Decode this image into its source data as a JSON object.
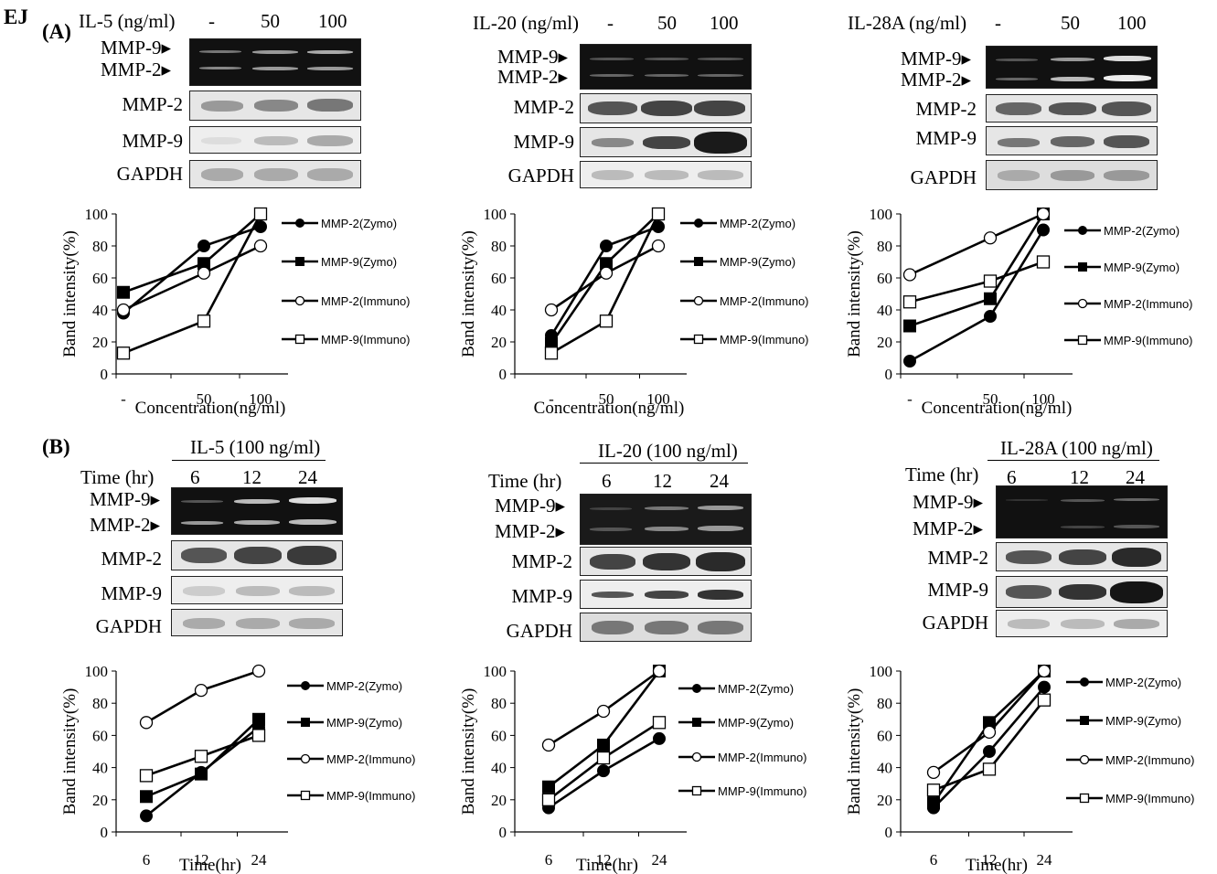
{
  "figure_label": "EJ",
  "panel_a": {
    "label": "(A)",
    "conditions": [
      "-",
      "50",
      "100"
    ],
    "groups": [
      {
        "header": "IL-5 (ng/ml)"
      },
      {
        "header": "IL-20 (ng/ml)"
      },
      {
        "header": "IL-28A (ng/ml)"
      }
    ]
  },
  "panel_b": {
    "label": "(B)",
    "time_label": "Time (hr)",
    "conditions": [
      "6",
      "12",
      "24"
    ],
    "groups": [
      {
        "header": "IL-5 (100 ng/ml)"
      },
      {
        "header": "IL-20 (100 ng/ml)"
      },
      {
        "header": "IL-28A (100 ng/ml)"
      }
    ]
  },
  "blot_labels": {
    "mmp9_arrow": "MMP-9",
    "mmp2_arrow": "MMP-2",
    "mmp2": "MMP-2",
    "mmp9": "MMP-9",
    "gapdh": "GAPDH"
  },
  "legend": [
    "MMP-2(Zymo)",
    "MMP-9(Zymo)",
    "MMP-2(Immuno)",
    "MMP-9(Immuno)"
  ],
  "colors": {
    "ink": "#000000",
    "gel": "#111111",
    "membrane": "#e6e6e6"
  },
  "chart_data": [
    {
      "type": "line",
      "id": "A1",
      "categories": [
        "-",
        "50",
        "100"
      ],
      "ylabel": "Band intensity(%)",
      "xlabel": "Concentration(ng/ml)",
      "ylim": [
        0,
        100
      ],
      "yticks": [
        0,
        20,
        40,
        60,
        80,
        100
      ],
      "series": [
        {
          "name": "MMP-2(Zymo)",
          "values": [
            38,
            80,
            92
          ]
        },
        {
          "name": "MMP-9(Zymo)",
          "values": [
            51,
            69,
            100
          ]
        },
        {
          "name": "MMP-2(Immuno)",
          "values": [
            40,
            63,
            80
          ]
        },
        {
          "name": "MMP-9(Immuno)",
          "values": [
            13,
            33,
            100
          ]
        }
      ]
    },
    {
      "type": "line",
      "id": "A2",
      "categories": [
        "-",
        "50",
        "100"
      ],
      "ylabel": "Band intensity(%)",
      "xlabel": "Concentration(ng/ml)",
      "ylim": [
        0,
        100
      ],
      "yticks": [
        0,
        20,
        40,
        60,
        80,
        100
      ],
      "series": [
        {
          "name": "MMP-2(Zymo)",
          "values": [
            24,
            80,
            92
          ]
        },
        {
          "name": "MMP-9(Zymo)",
          "values": [
            19,
            69,
            100
          ]
        },
        {
          "name": "MMP-2(Immuno)",
          "values": [
            40,
            63,
            80
          ]
        },
        {
          "name": "MMP-9(Immuno)",
          "values": [
            13,
            33,
            100
          ]
        }
      ]
    },
    {
      "type": "line",
      "id": "A3",
      "categories": [
        "-",
        "50",
        "100"
      ],
      "ylabel": "Band intensity(%)",
      "xlabel": "Concentration(ng/ml)",
      "ylim": [
        0,
        100
      ],
      "yticks": [
        0,
        20,
        40,
        60,
        80,
        100
      ],
      "series": [
        {
          "name": "MMP-2(Zymo)",
          "values": [
            8,
            36,
            90
          ]
        },
        {
          "name": "MMP-9(Zymo)",
          "values": [
            30,
            47,
            100
          ]
        },
        {
          "name": "MMP-2(Immuno)",
          "values": [
            62,
            85,
            100
          ]
        },
        {
          "name": "MMP-9(Immuno)",
          "values": [
            45,
            58,
            70
          ]
        }
      ]
    },
    {
      "type": "line",
      "id": "B1",
      "categories": [
        "6",
        "12",
        "24"
      ],
      "ylabel": "Band intensity(%)",
      "xlabel": "Time(hr)",
      "ylim": [
        0,
        100
      ],
      "yticks": [
        0,
        20,
        40,
        60,
        80,
        100
      ],
      "series": [
        {
          "name": "MMP-2(Zymo)",
          "values": [
            10,
            37,
            65
          ]
        },
        {
          "name": "MMP-9(Zymo)",
          "values": [
            22,
            36,
            70
          ]
        },
        {
          "name": "MMP-2(Immuno)",
          "values": [
            68,
            88,
            100
          ]
        },
        {
          "name": "MMP-9(Immuno)",
          "values": [
            35,
            47,
            60
          ]
        }
      ]
    },
    {
      "type": "line",
      "id": "B2",
      "categories": [
        "6",
        "12",
        "24"
      ],
      "ylabel": "Band intensity(%)",
      "xlabel": "Time(hr)",
      "ylim": [
        0,
        100
      ],
      "yticks": [
        0,
        20,
        40,
        60,
        80,
        100
      ],
      "series": [
        {
          "name": "MMP-2(Zymo)",
          "values": [
            15,
            38,
            58
          ]
        },
        {
          "name": "MMP-9(Zymo)",
          "values": [
            28,
            54,
            100
          ]
        },
        {
          "name": "MMP-2(Immuno)",
          "values": [
            54,
            75,
            100
          ]
        },
        {
          "name": "MMP-9(Immuno)",
          "values": [
            20,
            46,
            68
          ]
        }
      ]
    },
    {
      "type": "line",
      "id": "B3",
      "categories": [
        "6",
        "12",
        "24"
      ],
      "ylabel": "Band intensity(%)",
      "xlabel": "Time(hr)",
      "ylim": [
        0,
        100
      ],
      "yticks": [
        0,
        20,
        40,
        60,
        80,
        100
      ],
      "series": [
        {
          "name": "MMP-2(Zymo)",
          "values": [
            15,
            50,
            90
          ]
        },
        {
          "name": "MMP-9(Zymo)",
          "values": [
            18,
            68,
            100
          ]
        },
        {
          "name": "MMP-2(Immuno)",
          "values": [
            37,
            62,
            100
          ]
        },
        {
          "name": "MMP-9(Immuno)",
          "values": [
            26,
            39,
            82
          ]
        }
      ]
    }
  ]
}
